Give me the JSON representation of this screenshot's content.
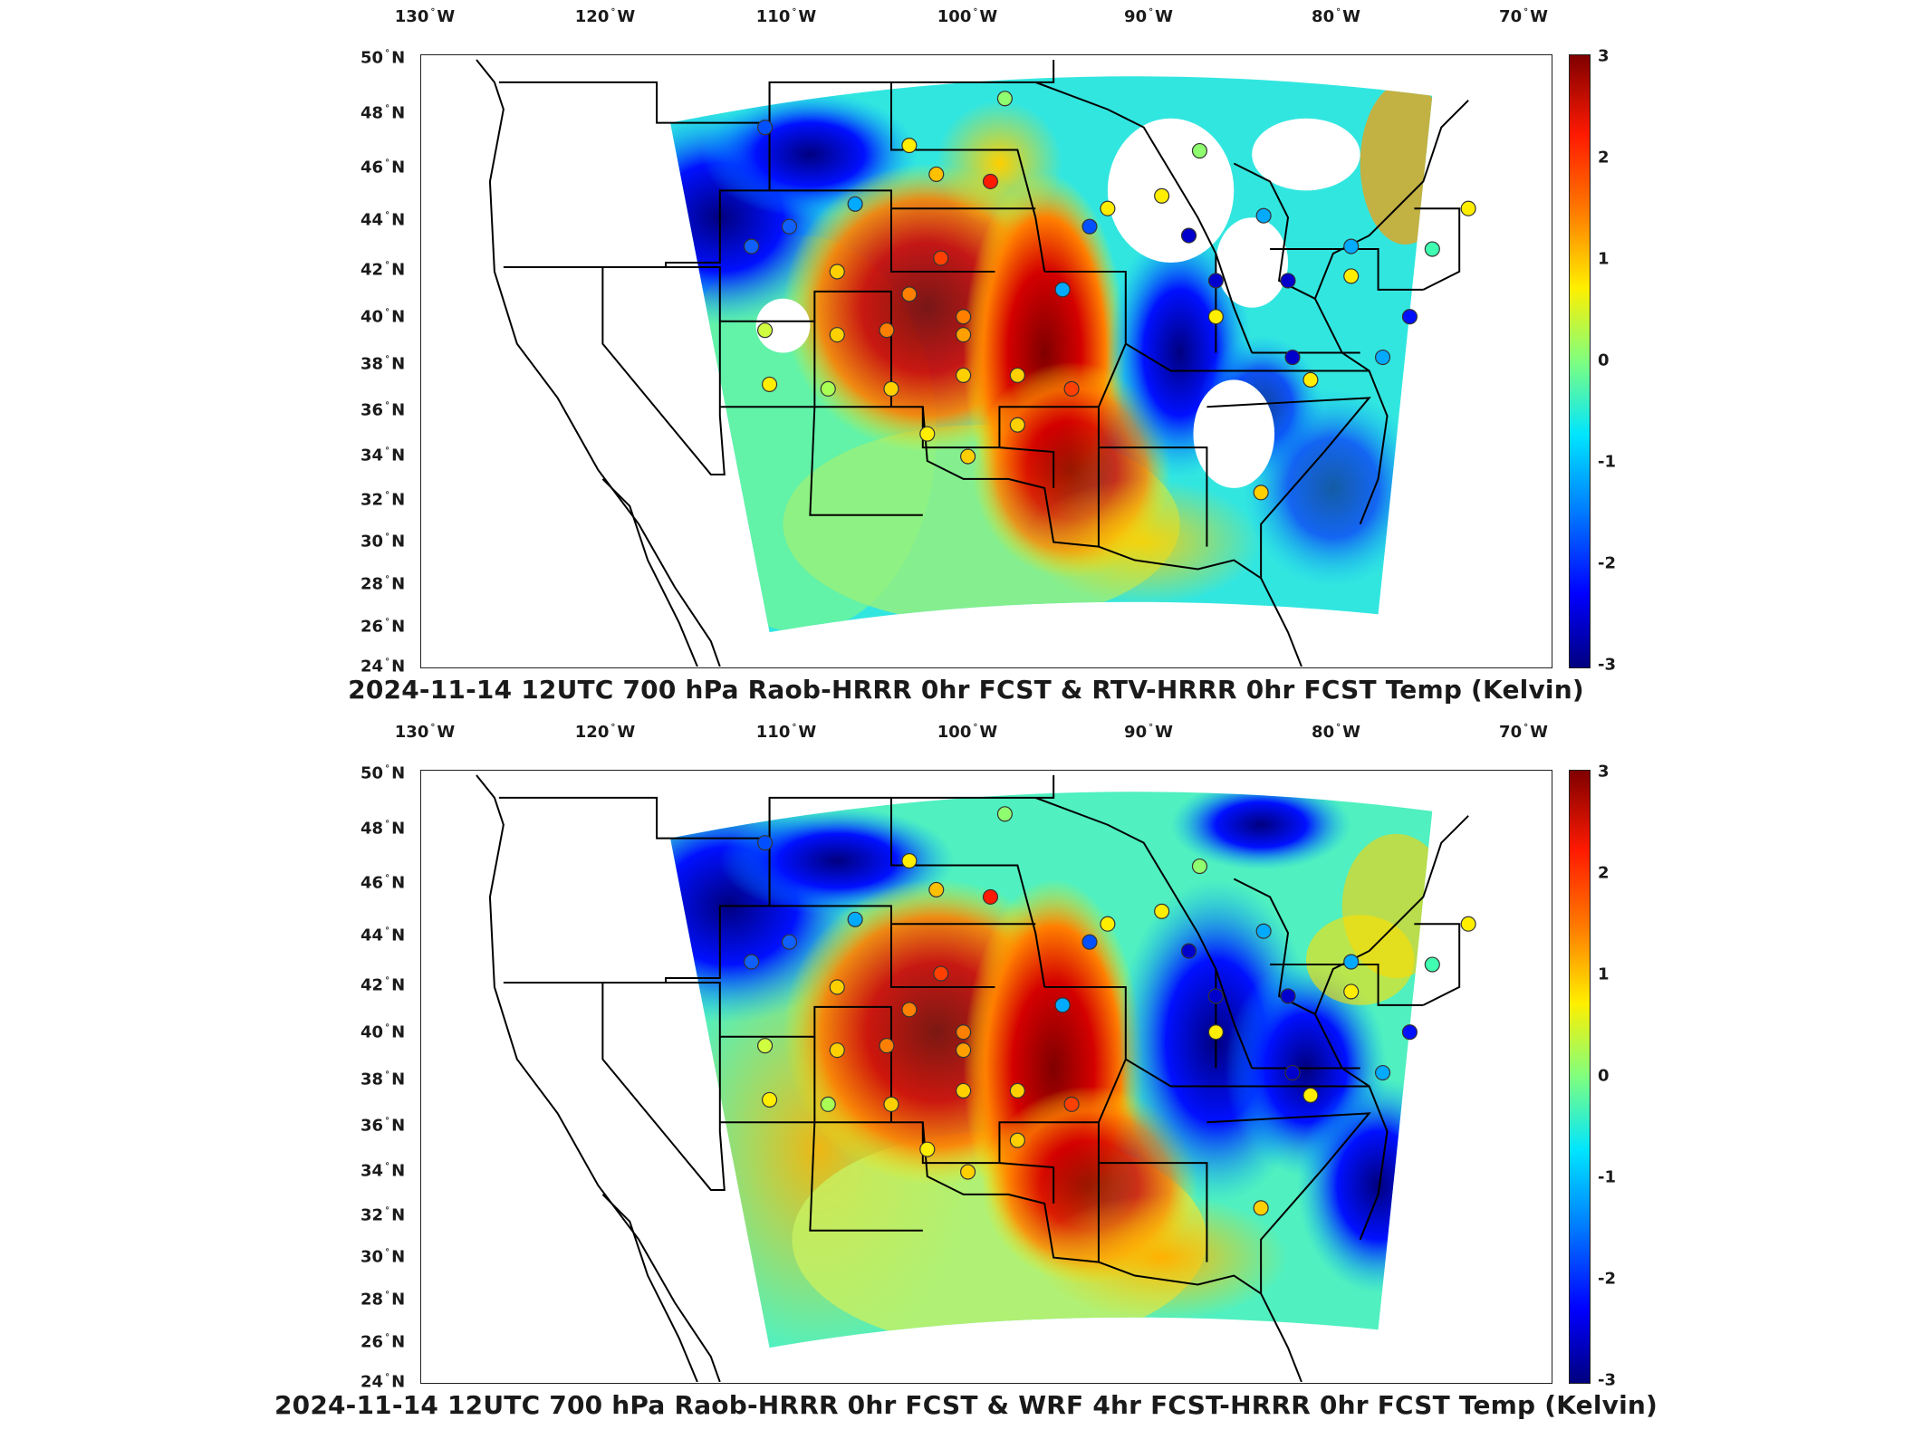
{
  "panels": [
    {
      "title": "2024-11-14 12UTC 700 hPa Raob-HRRR 0hr FCST & RTV-HRRR 0hr FCST Temp (Kelvin)",
      "colorbar_ticks": [
        "3",
        "2",
        "1",
        "0",
        "-1",
        "-2",
        "-3"
      ],
      "colorbar_range": [
        -3,
        3
      ]
    },
    {
      "title": "2024-11-14 12UTC 700 hPa Raob-HRRR 0hr FCST & WRF 4hr FCST-HRRR 0hr FCST Temp (Kelvin)",
      "colorbar_ticks": [
        "3",
        "2",
        "1",
        "0",
        "-1",
        "-2",
        "-3"
      ],
      "colorbar_range": [
        -3,
        3
      ]
    }
  ],
  "lon_ticks": [
    "130",
    "120",
    "110",
    "100",
    "90",
    "80",
    "70"
  ],
  "lon_hemisphere": "W",
  "lat_ticks": [
    "50",
    "48",
    "46",
    "44",
    "42",
    "40",
    "38",
    "36",
    "34",
    "32",
    "30",
    "28",
    "26",
    "24"
  ],
  "lat_hemisphere": "N",
  "colormap": "jet",
  "colors": {
    "dark_blue": "#00007f",
    "blue": "#0000ff",
    "cyan": "#00e5ff",
    "green": "#7fff7f",
    "yellow": "#ffef00",
    "orange": "#ff7f00",
    "red": "#ff1a00",
    "dark_red": "#7f0000"
  }
}
